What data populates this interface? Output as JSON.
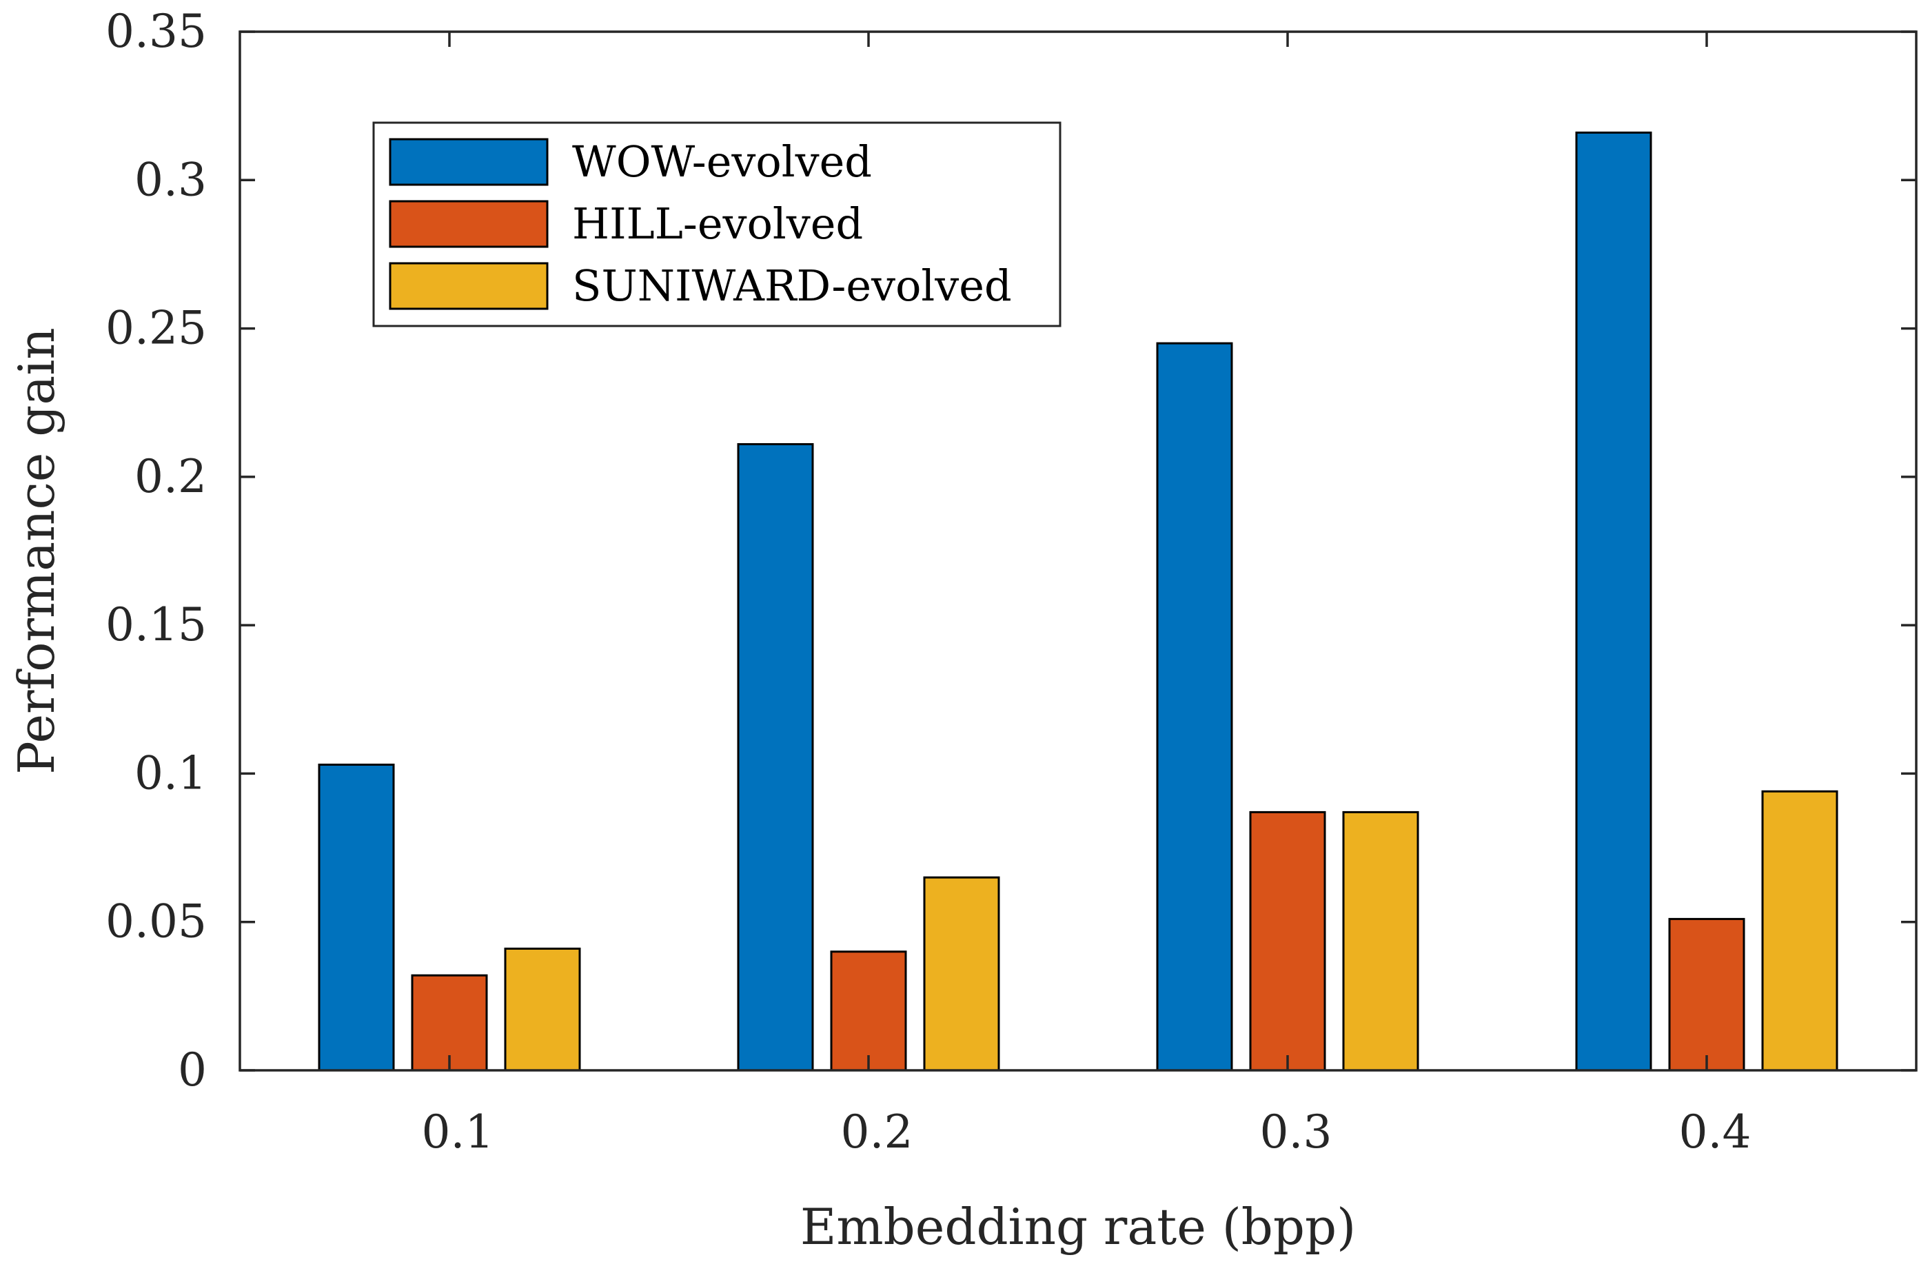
{
  "chart_data": {
    "type": "bar",
    "title": "",
    "xlabel": "Embedding rate (bpp)",
    "ylabel": "Performance gain",
    "categories": [
      "0.1",
      "0.2",
      "0.3",
      "0.4"
    ],
    "series": [
      {
        "name": "WOW-evolved",
        "color": "#0072BD",
        "values": [
          0.103,
          0.211,
          0.245,
          0.316
        ]
      },
      {
        "name": "HILL-evolved",
        "color": "#D95319",
        "values": [
          0.032,
          0.04,
          0.087,
          0.051
        ]
      },
      {
        "name": "SUNIWARD-evolved",
        "color": "#EDB120",
        "values": [
          0.041,
          0.065,
          0.087,
          0.094
        ]
      }
    ],
    "ylim": [
      0,
      0.35
    ],
    "yticks": [
      0,
      0.05,
      0.1,
      0.15,
      0.2,
      0.25,
      0.3,
      0.35
    ],
    "ytick_labels": [
      "0",
      "0.05",
      "0.1",
      "0.15",
      "0.2",
      "0.25",
      "0.3",
      "0.35"
    ],
    "grid": false,
    "legend_position": "top-left"
  }
}
